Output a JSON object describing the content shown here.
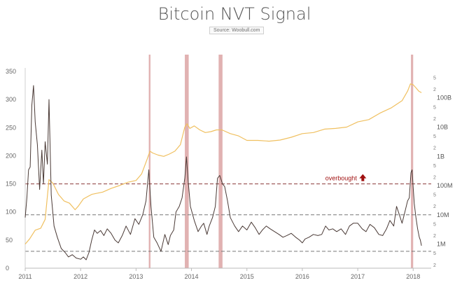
{
  "chart_data": {
    "type": "line",
    "title": "Bitcoin NVT Signal",
    "subtitle": "Source: Woobull.com",
    "x_ticks": [
      "2011",
      "2012",
      "2013",
      "2014",
      "2015",
      "2016",
      "2017",
      "2018"
    ],
    "xlim": [
      2011.0,
      2018.3
    ],
    "left_axis": {
      "ticks": [
        0,
        50,
        100,
        150,
        200,
        250,
        300,
        350
      ],
      "ylim": [
        0,
        350
      ]
    },
    "right_axis": {
      "scale": "log",
      "labels": [
        {
          "value": 1000000.0,
          "label": "1M"
        },
        {
          "value": 10000000.0,
          "label": "10M"
        },
        {
          "value": 100000000.0,
          "label": "100M"
        },
        {
          "value": 1000000000.0,
          "label": "1B"
        },
        {
          "value": 10000000000.0,
          "label": "10B"
        },
        {
          "value": 100000000000.0,
          "label": "100B"
        }
      ],
      "minor_labels": [
        {
          "value": 200000.0,
          "label": "2"
        },
        {
          "value": 500000.0,
          "label": "5"
        },
        {
          "value": 2000000.0,
          "label": "2"
        },
        {
          "value": 5000000.0,
          "label": "5"
        },
        {
          "value": 20000000.0,
          "label": "2"
        },
        {
          "value": 50000000.0,
          "label": "5"
        },
        {
          "value": 200000000.0,
          "label": "2"
        },
        {
          "value": 500000000.0,
          "label": "5"
        },
        {
          "value": 2000000000.0,
          "label": "2"
        },
        {
          "value": 5000000000.0,
          "label": "5"
        },
        {
          "value": 20000000000.0,
          "label": "2"
        },
        {
          "value": 50000000000.0,
          "label": "5"
        },
        {
          "value": 200000000000.0,
          "label": "2"
        },
        {
          "value": 500000000000.0,
          "label": "5"
        }
      ],
      "ylim": [
        150000.0,
        800000000000.0
      ]
    },
    "reference_lines": [
      {
        "value": 150,
        "color": "#8b3a3a"
      },
      {
        "value": 95,
        "color": "#777777"
      },
      {
        "value": 30,
        "color": "#777777"
      }
    ],
    "annotation": {
      "text": "overbought",
      "x": 2016.7,
      "y": 150,
      "color": "#a01010"
    },
    "highlight_bands": [
      {
        "from": 2013.23,
        "to": 2013.26
      },
      {
        "from": 2013.88,
        "to": 2013.95
      },
      {
        "from": 2014.49,
        "to": 2014.56
      },
      {
        "from": 2017.96,
        "to": 2018.0
      }
    ],
    "series": [
      {
        "color": "#4a3a36",
        "axis": "left",
        "points": [
          [
            2011.0,
            90
          ],
          [
            2011.03,
            125
          ],
          [
            2011.06,
            175
          ],
          [
            2011.09,
            180
          ],
          [
            2011.12,
            290
          ],
          [
            2011.15,
            325
          ],
          [
            2011.18,
            260
          ],
          [
            2011.22,
            220
          ],
          [
            2011.26,
            140
          ],
          [
            2011.3,
            210
          ],
          [
            2011.33,
            150
          ],
          [
            2011.36,
            225
          ],
          [
            2011.4,
            185
          ],
          [
            2011.43,
            300
          ],
          [
            2011.47,
            130
          ],
          [
            2011.52,
            75
          ],
          [
            2011.58,
            55
          ],
          [
            2011.65,
            35
          ],
          [
            2011.72,
            28
          ],
          [
            2011.78,
            20
          ],
          [
            2011.85,
            24
          ],
          [
            2011.92,
            18
          ],
          [
            2012.0,
            16
          ],
          [
            2012.05,
            20
          ],
          [
            2012.1,
            15
          ],
          [
            2012.15,
            28
          ],
          [
            2012.2,
            50
          ],
          [
            2012.25,
            68
          ],
          [
            2012.3,
            62
          ],
          [
            2012.36,
            67
          ],
          [
            2012.42,
            58
          ],
          [
            2012.48,
            70
          ],
          [
            2012.55,
            62
          ],
          [
            2012.62,
            50
          ],
          [
            2012.68,
            45
          ],
          [
            2012.75,
            58
          ],
          [
            2012.82,
            75
          ],
          [
            2012.9,
            60
          ],
          [
            2012.98,
            88
          ],
          [
            2013.05,
            78
          ],
          [
            2013.12,
            95
          ],
          [
            2013.18,
            120
          ],
          [
            2013.23,
            175
          ],
          [
            2013.27,
            110
          ],
          [
            2013.32,
            55
          ],
          [
            2013.38,
            45
          ],
          [
            2013.45,
            30
          ],
          [
            2013.52,
            60
          ],
          [
            2013.58,
            42
          ],
          [
            2013.62,
            58
          ],
          [
            2013.68,
            68
          ],
          [
            2013.72,
            100
          ],
          [
            2013.78,
            110
          ],
          [
            2013.83,
            125
          ],
          [
            2013.88,
            160
          ],
          [
            2013.91,
            198
          ],
          [
            2013.94,
            155
          ],
          [
            2013.98,
            110
          ],
          [
            2014.05,
            85
          ],
          [
            2014.12,
            65
          ],
          [
            2014.18,
            75
          ],
          [
            2014.22,
            80
          ],
          [
            2014.28,
            60
          ],
          [
            2014.32,
            75
          ],
          [
            2014.38,
            90
          ],
          [
            2014.43,
            110
          ],
          [
            2014.47,
            160
          ],
          [
            2014.51,
            165
          ],
          [
            2014.56,
            150
          ],
          [
            2014.6,
            145
          ],
          [
            2014.65,
            120
          ],
          [
            2014.7,
            90
          ],
          [
            2014.78,
            75
          ],
          [
            2014.85,
            65
          ],
          [
            2014.92,
            75
          ],
          [
            2015.0,
            68
          ],
          [
            2015.08,
            82
          ],
          [
            2015.15,
            72
          ],
          [
            2015.22,
            60
          ],
          [
            2015.28,
            68
          ],
          [
            2015.35,
            75
          ],
          [
            2015.42,
            70
          ],
          [
            2015.5,
            65
          ],
          [
            2015.58,
            60
          ],
          [
            2015.65,
            55
          ],
          [
            2015.72,
            58
          ],
          [
            2015.8,
            62
          ],
          [
            2015.88,
            55
          ],
          [
            2015.95,
            50
          ],
          [
            2016.0,
            45
          ],
          [
            2016.05,
            52
          ],
          [
            2016.12,
            55
          ],
          [
            2016.2,
            60
          ],
          [
            2016.28,
            58
          ],
          [
            2016.35,
            60
          ],
          [
            2016.42,
            75
          ],
          [
            2016.48,
            68
          ],
          [
            2016.55,
            70
          ],
          [
            2016.62,
            65
          ],
          [
            2016.7,
            70
          ],
          [
            2016.78,
            60
          ],
          [
            2016.85,
            75
          ],
          [
            2016.92,
            80
          ],
          [
            2017.0,
            80
          ],
          [
            2017.08,
            70
          ],
          [
            2017.15,
            65
          ],
          [
            2017.22,
            78
          ],
          [
            2017.3,
            72
          ],
          [
            2017.38,
            60
          ],
          [
            2017.45,
            58
          ],
          [
            2017.52,
            70
          ],
          [
            2017.58,
            85
          ],
          [
            2017.65,
            75
          ],
          [
            2017.7,
            110
          ],
          [
            2017.75,
            95
          ],
          [
            2017.8,
            80
          ],
          [
            2017.85,
            100
          ],
          [
            2017.9,
            120
          ],
          [
            2017.93,
            125
          ],
          [
            2017.96,
            170
          ],
          [
            2017.98,
            175
          ],
          [
            2018.0,
            145
          ],
          [
            2018.02,
            115
          ],
          [
            2018.05,
            90
          ],
          [
            2018.08,
            70
          ],
          [
            2018.11,
            55
          ],
          [
            2018.13,
            50
          ],
          [
            2018.15,
            40
          ]
        ]
      },
      {
        "color": "#f0c060",
        "axis": "right",
        "points": [
          [
            2011.0,
            1000000.0
          ],
          [
            2011.08,
            1500000.0
          ],
          [
            2011.18,
            3000000.0
          ],
          [
            2011.28,
            3500000.0
          ],
          [
            2011.36,
            7000000.0
          ],
          [
            2011.43,
            160000000.0
          ],
          [
            2011.5,
            120000000.0
          ],
          [
            2011.6,
            50000000.0
          ],
          [
            2011.7,
            30000000.0
          ],
          [
            2011.8,
            25000000.0
          ],
          [
            2011.9,
            15000000.0
          ],
          [
            2011.96,
            20000000.0
          ],
          [
            2012.05,
            35000000.0
          ],
          [
            2012.2,
            50000000.0
          ],
          [
            2012.4,
            60000000.0
          ],
          [
            2012.55,
            80000000.0
          ],
          [
            2012.7,
            100000000.0
          ],
          [
            2012.85,
            130000000.0
          ],
          [
            2013.0,
            150000000.0
          ],
          [
            2013.1,
            250000000.0
          ],
          [
            2013.2,
            800000000.0
          ],
          [
            2013.25,
            1500000000.0
          ],
          [
            2013.3,
            1300000000.0
          ],
          [
            2013.4,
            1100000000.0
          ],
          [
            2013.5,
            1000000000.0
          ],
          [
            2013.6,
            1200000000.0
          ],
          [
            2013.7,
            1500000000.0
          ],
          [
            2013.8,
            2500000000.0
          ],
          [
            2013.88,
            10000000000.0
          ],
          [
            2013.92,
            13000000000.0
          ],
          [
            2013.97,
            9000000000.0
          ],
          [
            2014.05,
            11000000000.0
          ],
          [
            2014.15,
            8000000000.0
          ],
          [
            2014.25,
            6500000000.0
          ],
          [
            2014.35,
            7000000000.0
          ],
          [
            2014.45,
            8000000000.0
          ],
          [
            2014.55,
            8000000000.0
          ],
          [
            2014.7,
            6000000000.0
          ],
          [
            2014.85,
            5000000000.0
          ],
          [
            2015.0,
            3500000000.0
          ],
          [
            2015.2,
            3500000000.0
          ],
          [
            2015.4,
            3300000000.0
          ],
          [
            2015.6,
            3600000000.0
          ],
          [
            2015.8,
            4500000000.0
          ],
          [
            2016.0,
            6000000000.0
          ],
          [
            2016.2,
            6500000000.0
          ],
          [
            2016.4,
            8500000000.0
          ],
          [
            2016.6,
            9000000000.0
          ],
          [
            2016.8,
            10000000000.0
          ],
          [
            2017.0,
            15000000000.0
          ],
          [
            2017.2,
            18000000000.0
          ],
          [
            2017.4,
            30000000000.0
          ],
          [
            2017.6,
            45000000000.0
          ],
          [
            2017.8,
            80000000000.0
          ],
          [
            2017.9,
            170000000000.0
          ],
          [
            2017.95,
            300000000000.0
          ],
          [
            2018.0,
            280000000000.0
          ],
          [
            2018.05,
            220000000000.0
          ],
          [
            2018.1,
            170000000000.0
          ],
          [
            2018.15,
            150000000000.0
          ]
        ]
      }
    ]
  }
}
